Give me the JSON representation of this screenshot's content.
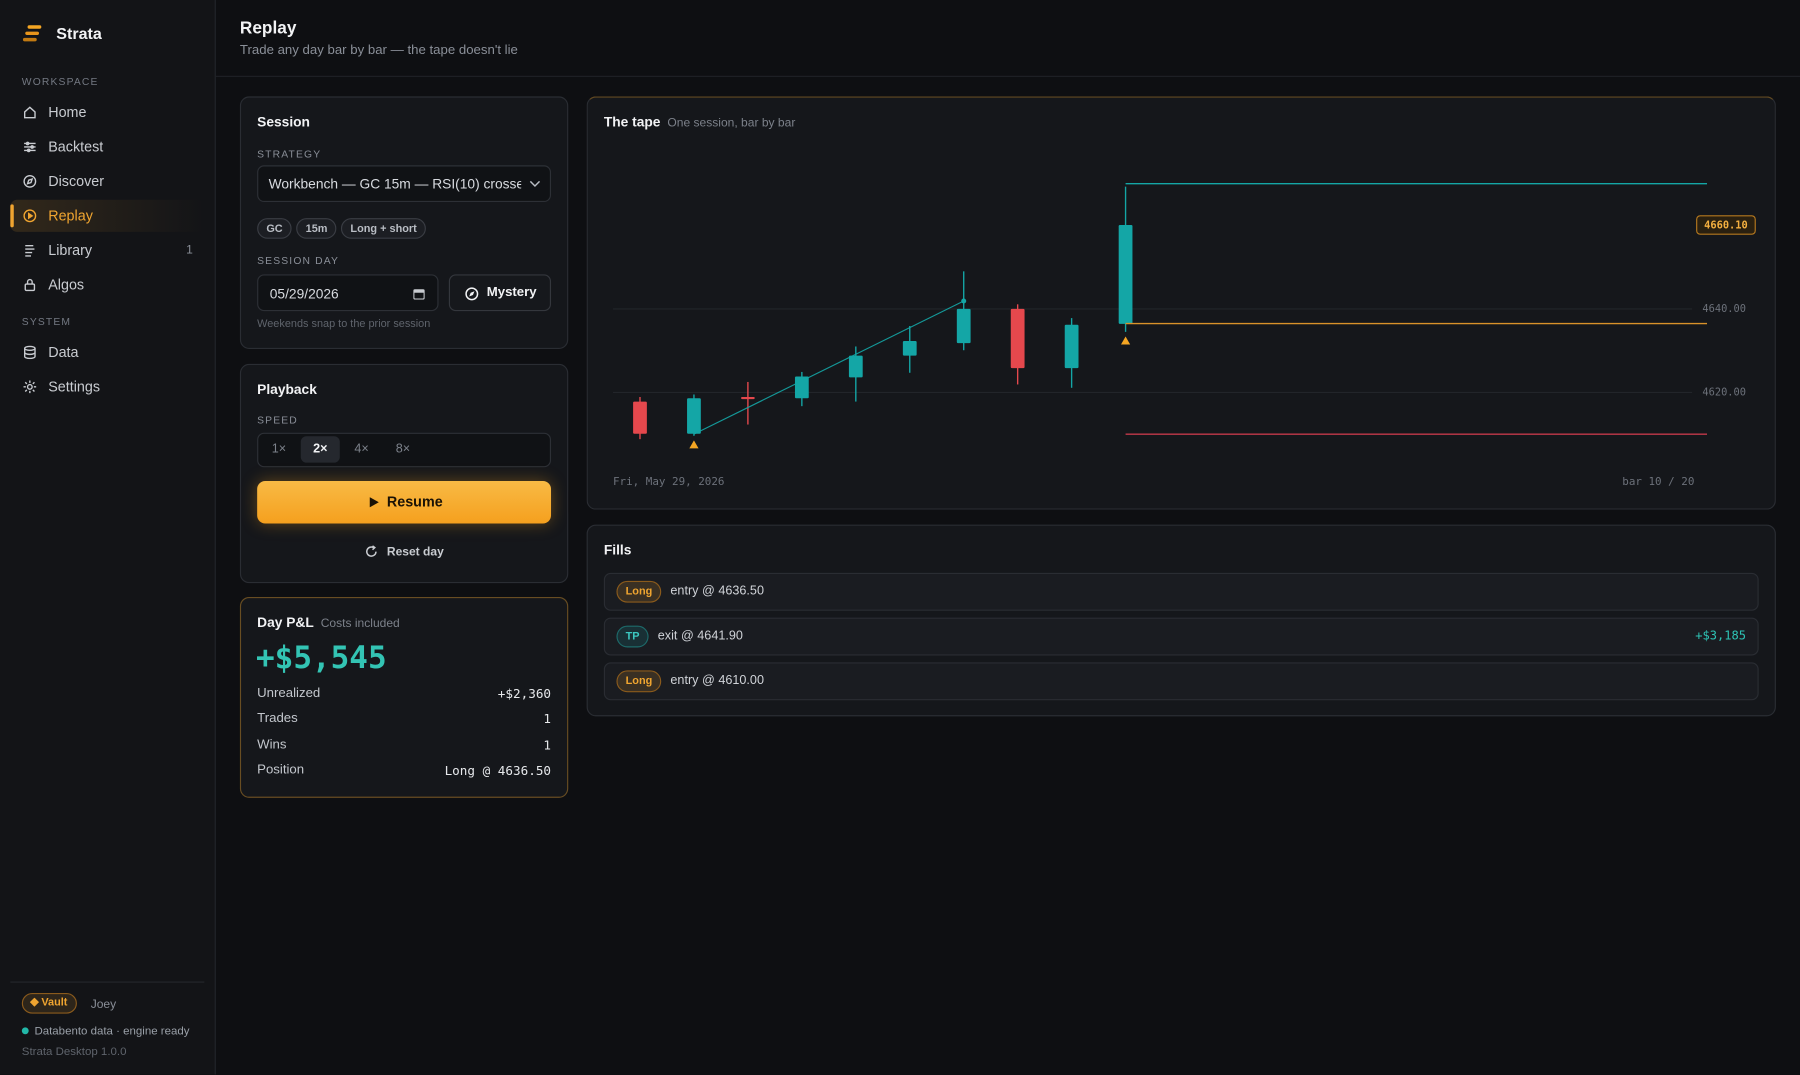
{
  "sidebar": {
    "brand": "Strata",
    "sections": [
      {
        "label": "WORKSPACE",
        "items": [
          {
            "label": "Home"
          },
          {
            "label": "Backtest"
          },
          {
            "label": "Discover"
          },
          {
            "label": "Replay",
            "active": true
          },
          {
            "label": "Library",
            "badge": "1"
          },
          {
            "label": "Algos"
          }
        ]
      },
      {
        "label": "SYSTEM",
        "items": [
          {
            "label": "Data"
          },
          {
            "label": "Settings"
          }
        ]
      }
    ],
    "footer": {
      "plan": "Vault",
      "user": "Joey",
      "status": "Databento data · engine ready",
      "version": "Strata Desktop 1.0.0"
    }
  },
  "header": {
    "title": "Replay",
    "subtitle": "Trade any day bar by bar — the tape doesn't lie"
  },
  "session": {
    "title": "Session",
    "strategy_label": "STRATEGY",
    "strategy": "Workbench — GC 15m — RSI(10) crosses a",
    "tags": [
      "GC",
      "15m",
      "Long + short"
    ],
    "day_label": "SESSION DAY",
    "day": "05/29/2026",
    "mystery": "Mystery",
    "hint": "Weekends snap to the prior session"
  },
  "playback": {
    "title": "Playback",
    "speed_label": "SPEED",
    "speeds": [
      "1×",
      "2×",
      "4×",
      "8×"
    ],
    "active_speed": 1,
    "resume": "Resume",
    "reset": "Reset day"
  },
  "pnl": {
    "title": "Day P&L",
    "subtitle": "Costs included",
    "total": "+$5,545",
    "rows": [
      {
        "label": "Unrealized",
        "value": "+$2,360"
      },
      {
        "label": "Trades",
        "value": "1"
      },
      {
        "label": "Wins",
        "value": "1"
      },
      {
        "label": "Position",
        "value": "Long @ 4636.50"
      }
    ]
  },
  "chart_data": {
    "type": "candlestick",
    "title": "The tape",
    "subtitle": "One session, bar by bar",
    "x_label": "Fri, May 29, 2026",
    "bar_label": "bar 10 / 20",
    "xlim": [
      0,
      20
    ],
    "open": [
      4617.8,
      4610.1,
      4618.9,
      4618.6,
      4623.6,
      4628.8,
      4631.8,
      4640.0,
      4625.8,
      4636.4
    ],
    "high": [
      4618.9,
      4619.5,
      4622.5,
      4624.9,
      4631.0,
      4635.9,
      4649.0,
      4641.1,
      4637.8,
      4669.3
    ],
    "low": [
      4608.8,
      4609.6,
      4612.3,
      4616.7,
      4617.8,
      4624.7,
      4630.1,
      4621.9,
      4621.1,
      4634.5
    ],
    "close": [
      4610.1,
      4618.6,
      4618.4,
      4623.8,
      4628.8,
      4632.3,
      4640.0,
      4625.8,
      4636.2,
      4660.1
    ],
    "up_color": "#14a6a6",
    "down_color": "#e5484d",
    "ylim": [
      4604,
      4681
    ],
    "yticks": [
      {
        "value": 4640,
        "label": "4640.00"
      },
      {
        "value": 4620,
        "label": "4620.00"
      }
    ],
    "grid": true,
    "last_price": {
      "value": 4660.1,
      "label": "4660.10"
    },
    "trade": {
      "x": [
        1,
        6
      ],
      "values": [
        4610.0,
        4641.9
      ],
      "color": "#14a6a6"
    },
    "entry_bars": [
      1,
      9
    ],
    "marker_color": "#f5a623",
    "levels_from": 9,
    "levels": {
      "values": [
        4670.0,
        4636.5,
        4610.0
      ],
      "colors": [
        "#14a6a6",
        "#d9922a",
        "#c2394a"
      ]
    }
  },
  "fills": {
    "title": "Fills",
    "rows": [
      {
        "side": "Long",
        "text": "entry @ 4636.50"
      },
      {
        "side": "TP",
        "text": "exit @ 4641.90",
        "pnl": "+$3,185"
      },
      {
        "side": "Long",
        "text": "entry @ 4610.00"
      }
    ]
  }
}
